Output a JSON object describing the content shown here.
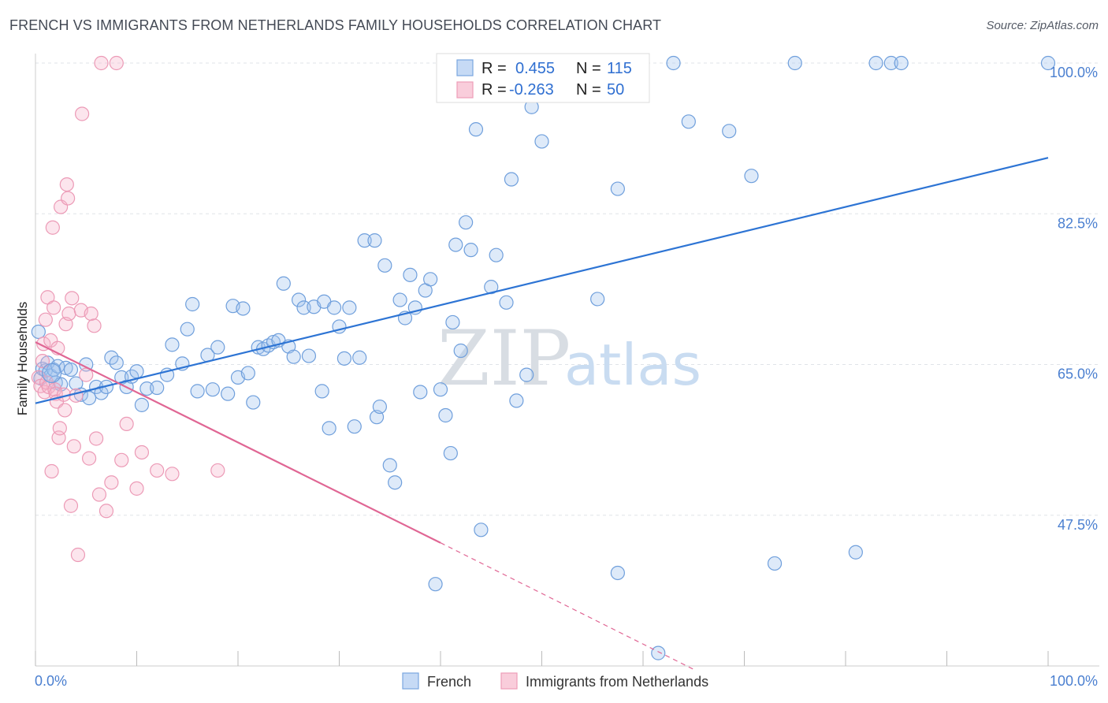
{
  "title": "FRENCH VS IMMIGRANTS FROM NETHERLANDS FAMILY HOUSEHOLDS CORRELATION CHART",
  "source": "Source: ZipAtlas.com",
  "watermark": {
    "zip": "ZIP",
    "atlas": "atlas"
  },
  "chart_data": {
    "type": "scatter",
    "ylabel": "Family Households",
    "xlim": [
      0,
      100
    ],
    "ylim": [
      30,
      100
    ],
    "y_ticks": [
      {
        "value": 100,
        "label": "100.0%"
      },
      {
        "value": 82.5,
        "label": "82.5%"
      },
      {
        "value": 65,
        "label": "65.0%"
      },
      {
        "value": 47.5,
        "label": "47.5%"
      }
    ],
    "x_end_labels": {
      "left": "0.0%",
      "right": "100.0%"
    },
    "grid": true,
    "legend_position": "top-center",
    "stats": [
      {
        "r_label": "R =",
        "r": "0.455",
        "n_label": "N =",
        "n": "115"
      },
      {
        "r_label": "R =",
        "r": "-0.263",
        "n_label": "N =",
        "n": "50"
      }
    ],
    "series": [
      {
        "name": "French",
        "color": "#8fb8e8",
        "line_color": "#2d74d4",
        "trend": {
          "x0": 0,
          "y0": 60.5,
          "x1": 100,
          "y1": 89.0
        },
        "points": [
          [
            0.3,
            68.8
          ],
          [
            0.5,
            63.4
          ],
          [
            0.7,
            64.5
          ],
          [
            1.0,
            64.3
          ],
          [
            1.2,
            65.2
          ],
          [
            1.5,
            63.7
          ],
          [
            1.8,
            64.4
          ],
          [
            2.0,
            62.9
          ],
          [
            2.2,
            64.8
          ],
          [
            2.5,
            62.7
          ],
          [
            3.0,
            64.6
          ],
          [
            3.5,
            64.4
          ],
          [
            4.0,
            62.8
          ],
          [
            4.5,
            61.5
          ],
          [
            5.0,
            65.0
          ],
          [
            5.3,
            61.1
          ],
          [
            6.0,
            62.4
          ],
          [
            6.5,
            61.7
          ],
          [
            7.0,
            62.4
          ],
          [
            7.5,
            65.8
          ],
          [
            8.0,
            65.2
          ],
          [
            8.5,
            63.5
          ],
          [
            9.0,
            62.4
          ],
          [
            9.5,
            63.6
          ],
          [
            10.0,
            64.2
          ],
          [
            10.5,
            60.3
          ],
          [
            11.0,
            62.2
          ],
          [
            12.0,
            62.3
          ],
          [
            13.0,
            63.8
          ],
          [
            13.5,
            67.3
          ],
          [
            14.5,
            65.1
          ],
          [
            15.0,
            69.1
          ],
          [
            15.5,
            72.0
          ],
          [
            16.0,
            61.9
          ],
          [
            17.0,
            66.1
          ],
          [
            17.5,
            62.1
          ],
          [
            18.0,
            67.0
          ],
          [
            19.0,
            61.6
          ],
          [
            19.5,
            71.8
          ],
          [
            20.0,
            63.5
          ],
          [
            20.5,
            71.5
          ],
          [
            21.0,
            64.0
          ],
          [
            21.5,
            60.6
          ],
          [
            22.0,
            67.0
          ],
          [
            22.5,
            66.8
          ],
          [
            23.0,
            67.2
          ],
          [
            23.5,
            67.6
          ],
          [
            24.0,
            67.8
          ],
          [
            24.5,
            74.4
          ],
          [
            25.0,
            67.1
          ],
          [
            25.5,
            65.9
          ],
          [
            26.0,
            72.5
          ],
          [
            26.5,
            71.6
          ],
          [
            27.0,
            66.0
          ],
          [
            27.5,
            71.7
          ],
          [
            28.5,
            72.3
          ],
          [
            28.3,
            61.9
          ],
          [
            29.0,
            57.6
          ],
          [
            29.5,
            71.6
          ],
          [
            30.0,
            69.4
          ],
          [
            30.5,
            65.7
          ],
          [
            31.0,
            71.6
          ],
          [
            31.5,
            57.8
          ],
          [
            32.0,
            65.8
          ],
          [
            32.5,
            79.4
          ],
          [
            33.5,
            79.4
          ],
          [
            33.7,
            58.9
          ],
          [
            34.0,
            60.1
          ],
          [
            34.5,
            76.5
          ],
          [
            35.0,
            53.3
          ],
          [
            35.5,
            51.3
          ],
          [
            36.0,
            72.5
          ],
          [
            36.5,
            70.4
          ],
          [
            37.0,
            75.4
          ],
          [
            37.5,
            71.6
          ],
          [
            38.0,
            61.8
          ],
          [
            38.5,
            73.6
          ],
          [
            39.0,
            74.9
          ],
          [
            39.5,
            39.5
          ],
          [
            40.0,
            62.1
          ],
          [
            40.5,
            59.1
          ],
          [
            41.0,
            54.7
          ],
          [
            41.2,
            69.9
          ],
          [
            41.5,
            78.9
          ],
          [
            42.0,
            66.6
          ],
          [
            42.5,
            81.5
          ],
          [
            43.0,
            78.3
          ],
          [
            43.5,
            92.3
          ],
          [
            44.0,
            45.8
          ],
          [
            45.0,
            74.0
          ],
          [
            45.5,
            77.7
          ],
          [
            46.5,
            72.2
          ],
          [
            47.0,
            86.5
          ],
          [
            47.5,
            60.8
          ],
          [
            48.5,
            63.8
          ],
          [
            49.0,
            94.9
          ],
          [
            50.0,
            90.9
          ],
          [
            52.5,
            100
          ],
          [
            53,
            100
          ],
          [
            55.5,
            72.6
          ],
          [
            57.5,
            85.4
          ],
          [
            57.5,
            40.8
          ],
          [
            59.0,
            100
          ],
          [
            61.5,
            31.5
          ],
          [
            63.0,
            100
          ],
          [
            64.5,
            93.2
          ],
          [
            68.5,
            92.1
          ],
          [
            70.7,
            86.9
          ],
          [
            73.0,
            41.9
          ],
          [
            75.0,
            100
          ],
          [
            81.0,
            43.2
          ],
          [
            83.0,
            100
          ],
          [
            84.5,
            100
          ],
          [
            85.5,
            100
          ],
          [
            100,
            100
          ]
        ]
      },
      {
        "name": "Immigrants from Netherlands",
        "color": "#f2a7c0",
        "line_color": "#e06694",
        "trend": {
          "x0": 0,
          "y0": 67.6,
          "x1": 40,
          "y1": 44.3
        },
        "trend_dashed": {
          "x0": 40,
          "y0": 44.3,
          "x1": 65,
          "y1": 29.6
        },
        "points": [
          [
            0.3,
            63.5
          ],
          [
            0.5,
            62.5
          ],
          [
            0.7,
            65.4
          ],
          [
            0.8,
            67.4
          ],
          [
            0.9,
            61.8
          ],
          [
            1.0,
            70.2
          ],
          [
            1.1,
            62.9
          ],
          [
            1.3,
            62.4
          ],
          [
            1.2,
            72.8
          ],
          [
            1.5,
            67.8
          ],
          [
            1.6,
            52.6
          ],
          [
            1.7,
            80.9
          ],
          [
            1.8,
            71.6
          ],
          [
            1.9,
            62.1
          ],
          [
            2.0,
            61.6
          ],
          [
            2.1,
            60.7
          ],
          [
            2.2,
            66.9
          ],
          [
            2.3,
            56.5
          ],
          [
            2.4,
            57.6
          ],
          [
            2.5,
            83.3
          ],
          [
            2.8,
            61.5
          ],
          [
            2.9,
            59.7
          ],
          [
            3.0,
            69.7
          ],
          [
            3.1,
            85.9
          ],
          [
            3.2,
            84.3
          ],
          [
            3.3,
            70.9
          ],
          [
            3.5,
            48.6
          ],
          [
            3.6,
            72.7
          ],
          [
            3.8,
            55.5
          ],
          [
            4.0,
            61.4
          ],
          [
            4.2,
            42.9
          ],
          [
            4.5,
            71.3
          ],
          [
            4.6,
            94.1
          ],
          [
            5.0,
            63.8
          ],
          [
            5.3,
            54.1
          ],
          [
            5.5,
            70.9
          ],
          [
            5.8,
            69.5
          ],
          [
            6.0,
            56.4
          ],
          [
            6.3,
            49.9
          ],
          [
            6.5,
            100
          ],
          [
            7.0,
            48.0
          ],
          [
            7.5,
            51.3
          ],
          [
            8.0,
            100
          ],
          [
            8.5,
            53.9
          ],
          [
            9.0,
            58.1
          ],
          [
            10.0,
            50.6
          ],
          [
            10.5,
            54.8
          ],
          [
            12.0,
            52.7
          ],
          [
            13.5,
            52.3
          ],
          [
            18.0,
            52.7
          ]
        ]
      }
    ]
  }
}
